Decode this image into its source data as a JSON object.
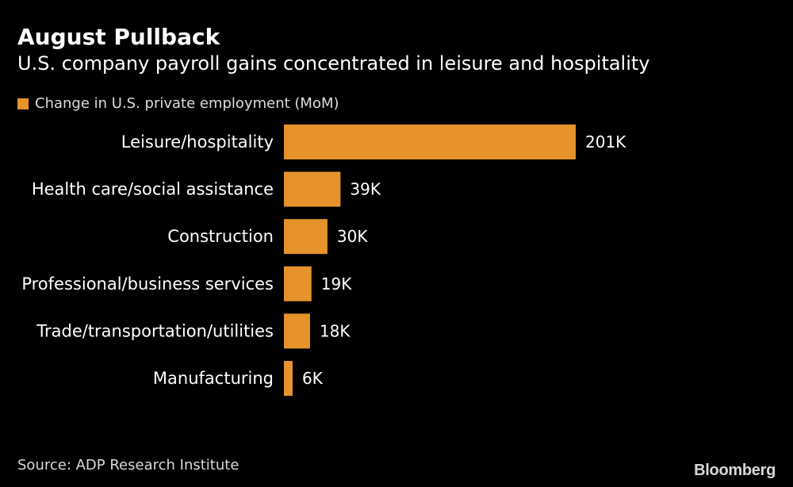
{
  "colors": {
    "bar": "#e5932a",
    "background": "#000000"
  },
  "legend": {
    "label": "Change in U.S. private employment (MoM)"
  },
  "source": "Source: ADP Research Institute",
  "brand": "Bloomberg",
  "chart_data": {
    "type": "bar",
    "orientation": "horizontal",
    "title": "August Pullback",
    "subtitle": "U.S. company payroll gains concentrated in leisure and hospitality",
    "categories": [
      "Leisure/hospitality",
      "Health care/social assistance",
      "Construction",
      "Professional/business services",
      "Trade/transportation/utilities",
      "Manufacturing"
    ],
    "series": [
      {
        "name": "Change in U.S. private employment (MoM)",
        "values": [
          201,
          39,
          30,
          19,
          18,
          6
        ],
        "labels": [
          "201K",
          "39K",
          "30K",
          "19K",
          "18K",
          "6K"
        ]
      }
    ],
    "unit": "thousands",
    "xlim": [
      0,
      201
    ],
    "grid": false,
    "legend_position": "top-left"
  }
}
